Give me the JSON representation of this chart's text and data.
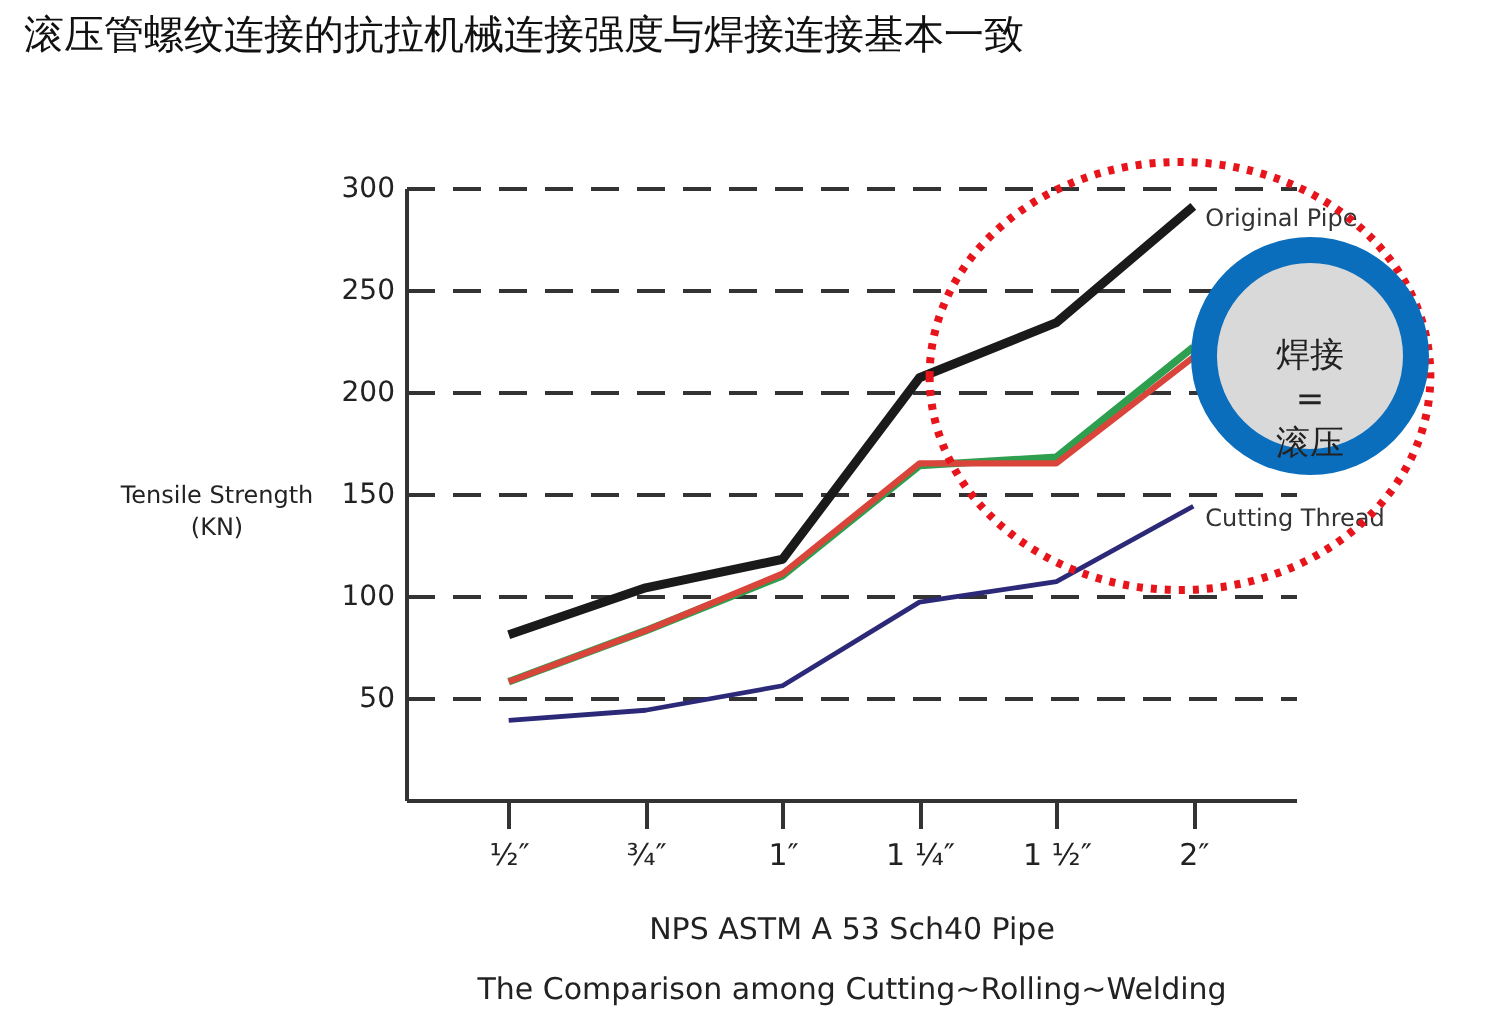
{
  "chart_data": {
    "type": "line",
    "title": "滚压管螺纹连接的抗拉机械连接强度与焊接连接基本一致",
    "xlabel": "NPS ASTM A 53 Sch40 Pipe\nThe Comparison among Cutting~Rolling~Welding",
    "ylabel": "Tensile Strength\n(KN)",
    "categories": [
      "½″",
      "¾″",
      "1″",
      "1 ¼″",
      "1 ½″",
      "2″"
    ],
    "ylim": [
      0,
      300
    ],
    "yticks": [
      50,
      100,
      150,
      200,
      250,
      300
    ],
    "grid": "y",
    "legend": false,
    "line_style": "solid",
    "marker": "none",
    "annotations": [
      "焊接\n=\n滚压"
    ],
    "series": [
      {
        "name": "Original Pipe",
        "color": "#1a1a1a",
        "values": [
          81,
          104,
          118,
          207,
          234,
          291
        ]
      },
      {
        "color": "#2e9e4f",
        "values": [
          58,
          83,
          110,
          164,
          168,
          222
        ]
      },
      {
        "color": "#d9453a",
        "values": [
          58,
          83,
          111,
          165,
          165,
          217
        ]
      },
      {
        "name": "Cutting Thread",
        "color": "#2c2a78",
        "values": [
          39,
          44,
          56,
          97,
          107,
          144
        ]
      }
    ]
  }
}
